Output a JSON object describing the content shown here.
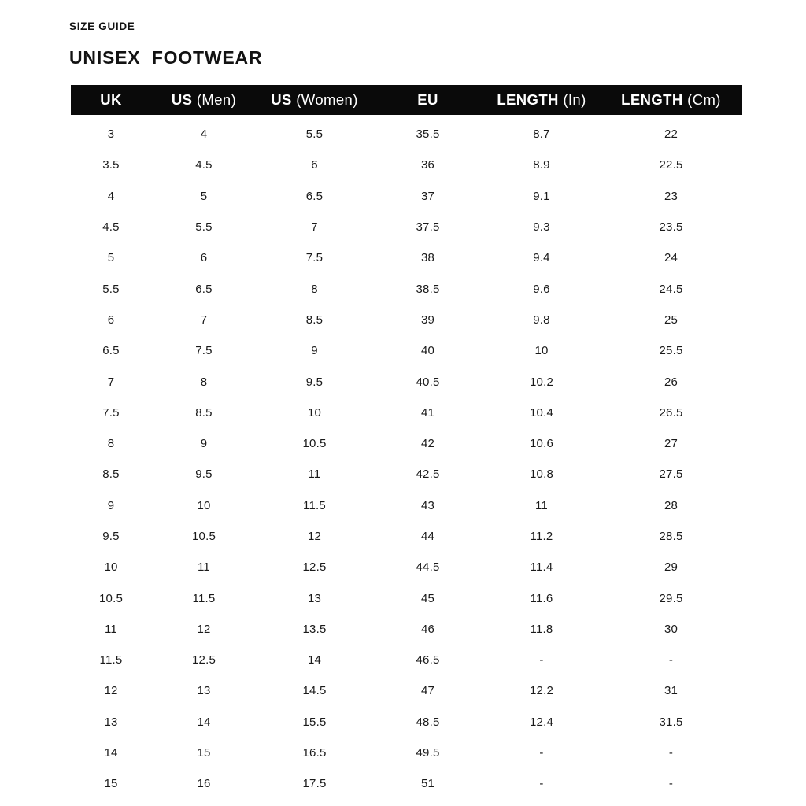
{
  "page": {
    "eyebrow": "SIZE GUIDE",
    "title": "UNISEX  FOOTWEAR"
  },
  "colors": {
    "header_bg": "#0a0a0a",
    "header_text": "#ffffff",
    "body_text": "#1a1a1a",
    "background": "#ffffff"
  },
  "table": {
    "columns": [
      {
        "main": "UK",
        "sub": ""
      },
      {
        "main": "US",
        "sub": "(Men)"
      },
      {
        "main": "US",
        "sub": "(Women)"
      },
      {
        "main": "EU",
        "sub": ""
      },
      {
        "main": "LENGTH",
        "sub": "(In)"
      },
      {
        "main": "LENGTH",
        "sub": "(Cm)"
      }
    ],
    "rows": [
      [
        "3",
        "4",
        "5.5",
        "35.5",
        "8.7",
        "22"
      ],
      [
        "3.5",
        "4.5",
        "6",
        "36",
        "8.9",
        "22.5"
      ],
      [
        "4",
        "5",
        "6.5",
        "37",
        "9.1",
        "23"
      ],
      [
        "4.5",
        "5.5",
        "7",
        "37.5",
        "9.3",
        "23.5"
      ],
      [
        "5",
        "6",
        "7.5",
        "38",
        "9.4",
        "24"
      ],
      [
        "5.5",
        "6.5",
        "8",
        "38.5",
        "9.6",
        "24.5"
      ],
      [
        "6",
        "7",
        "8.5",
        "39",
        "9.8",
        "25"
      ],
      [
        "6.5",
        "7.5",
        "9",
        "40",
        "10",
        "25.5"
      ],
      [
        "7",
        "8",
        "9.5",
        "40.5",
        "10.2",
        "26"
      ],
      [
        "7.5",
        "8.5",
        "10",
        "41",
        "10.4",
        "26.5"
      ],
      [
        "8",
        "9",
        "10.5",
        "42",
        "10.6",
        "27"
      ],
      [
        "8.5",
        "9.5",
        "11",
        "42.5",
        "10.8",
        "27.5"
      ],
      [
        "9",
        "10",
        "11.5",
        "43",
        "11",
        "28"
      ],
      [
        "9.5",
        "10.5",
        "12",
        "44",
        "11.2",
        "28.5"
      ],
      [
        "10",
        "11",
        "12.5",
        "44.5",
        "11.4",
        "29"
      ],
      [
        "10.5",
        "11.5",
        "13",
        "45",
        "11.6",
        "29.5"
      ],
      [
        "11",
        "12",
        "13.5",
        "46",
        "11.8",
        "30"
      ],
      [
        "11.5",
        "12.5",
        "14",
        "46.5",
        "-",
        "-"
      ],
      [
        "12",
        "13",
        "14.5",
        "47",
        "12.2",
        "31"
      ],
      [
        "13",
        "14",
        "15.5",
        "48.5",
        "12.4",
        "31.5"
      ],
      [
        "14",
        "15",
        "16.5",
        "49.5",
        "-",
        "-"
      ],
      [
        "15",
        "16",
        "17.5",
        "51",
        "-",
        "-"
      ]
    ]
  }
}
